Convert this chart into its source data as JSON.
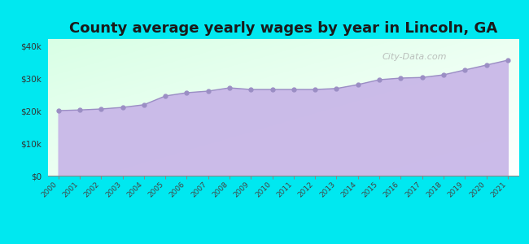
{
  "title": "County average yearly wages by year in Lincoln, GA",
  "years": [
    2000,
    2001,
    2002,
    2003,
    2004,
    2005,
    2006,
    2007,
    2008,
    2009,
    2010,
    2011,
    2012,
    2013,
    2014,
    2015,
    2016,
    2017,
    2018,
    2019,
    2020,
    2021
  ],
  "wages": [
    20000,
    20200,
    20500,
    21000,
    21800,
    24500,
    25500,
    26000,
    27000,
    26500,
    26500,
    26500,
    26500,
    26800,
    28000,
    29500,
    30000,
    30200,
    31000,
    32500,
    34000,
    35500
  ],
  "fill_color": "#c9b8e8",
  "line_color": "#9b8ec4",
  "marker_color": "#9b8ec4",
  "bg_outer": "#00e8f0",
  "ylim": [
    0,
    42000
  ],
  "yticks": [
    0,
    10000,
    20000,
    30000,
    40000
  ],
  "ytick_labels": [
    "$0",
    "$10k",
    "$20k",
    "$30k",
    "$40k"
  ],
  "title_fontsize": 13,
  "watermark": "City-Data.com"
}
